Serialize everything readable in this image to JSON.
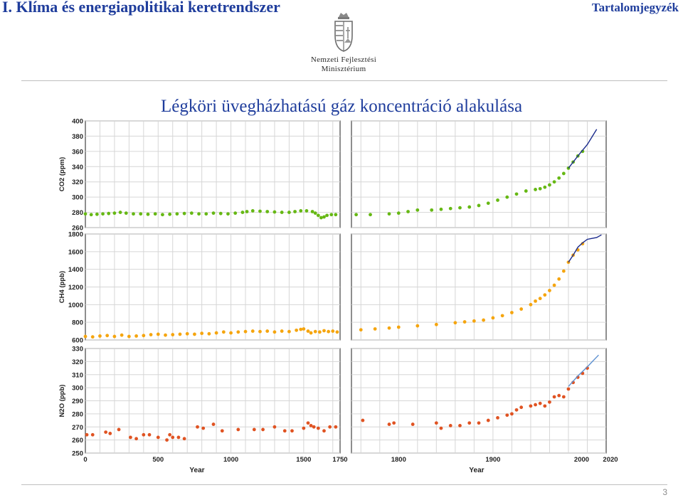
{
  "header": {
    "title": "I. Klíma és energiapolitikai keretrendszer",
    "toc_link": "Tartalomjegyzék"
  },
  "logo": {
    "line1": "Nemzeti Fejlesztési",
    "line2": "Minisztérium",
    "crest_icon": "hungarian-coat-of-arms-icon"
  },
  "slide": {
    "heading": "Légköri üvegházhatású gáz koncentráció alakulása",
    "page_number": "3"
  },
  "colors": {
    "title": "#1f3d9c",
    "co2": "#66b814",
    "ch4": "#f5a50f",
    "n2o": "#e05322",
    "modern_line": "#1a2a8c",
    "n2o_line": "#5b8fd0"
  },
  "chart_data": {
    "type": "scatter",
    "x_axis": {
      "label": "Year",
      "left_panel": {
        "range": [
          0,
          1750
        ],
        "ticks": [
          "0",
          "500",
          "1000",
          "1500",
          "1750"
        ]
      },
      "right_panel": {
        "range": [
          1750,
          2020
        ],
        "ticks": [
          "1800",
          "1900",
          "2000",
          "2020"
        ]
      }
    },
    "grid": true,
    "panels": [
      {
        "gas": "co2",
        "ylabel": "CO2 (ppm)",
        "ylim": [
          260,
          400
        ],
        "yticks": [
          "260",
          "280",
          "300",
          "320",
          "340",
          "360",
          "380",
          "400"
        ],
        "left_points": [
          [
            0,
            278
          ],
          [
            40,
            277
          ],
          [
            80,
            277.5
          ],
          [
            120,
            278
          ],
          [
            160,
            278.5
          ],
          [
            200,
            279
          ],
          [
            240,
            280
          ],
          [
            280,
            279
          ],
          [
            330,
            278
          ],
          [
            380,
            278
          ],
          [
            430,
            277.5
          ],
          [
            480,
            278
          ],
          [
            530,
            277
          ],
          [
            580,
            277.5
          ],
          [
            630,
            278
          ],
          [
            680,
            278.5
          ],
          [
            730,
            279
          ],
          [
            780,
            278
          ],
          [
            830,
            278
          ],
          [
            880,
            279
          ],
          [
            930,
            278.5
          ],
          [
            980,
            278
          ],
          [
            1030,
            279
          ],
          [
            1080,
            280
          ],
          [
            1110,
            281
          ],
          [
            1150,
            282
          ],
          [
            1200,
            281.5
          ],
          [
            1250,
            281
          ],
          [
            1300,
            280.5
          ],
          [
            1350,
            280
          ],
          [
            1400,
            280
          ],
          [
            1440,
            281
          ],
          [
            1480,
            282
          ],
          [
            1520,
            282
          ],
          [
            1560,
            281
          ],
          [
            1580,
            279
          ],
          [
            1600,
            276
          ],
          [
            1620,
            273
          ],
          [
            1640,
            274
          ],
          [
            1660,
            276
          ],
          [
            1690,
            277
          ],
          [
            1720,
            277
          ]
        ],
        "right_points": [
          [
            1755,
            277
          ],
          [
            1770,
            277
          ],
          [
            1790,
            278
          ],
          [
            1800,
            279
          ],
          [
            1810,
            281
          ],
          [
            1820,
            283
          ],
          [
            1835,
            283
          ],
          [
            1845,
            284
          ],
          [
            1855,
            285
          ],
          [
            1865,
            286
          ],
          [
            1875,
            287
          ],
          [
            1885,
            289
          ],
          [
            1895,
            292
          ],
          [
            1905,
            296
          ],
          [
            1915,
            300
          ],
          [
            1925,
            304
          ],
          [
            1935,
            308
          ],
          [
            1945,
            310
          ],
          [
            1950,
            311
          ],
          [
            1955,
            313
          ],
          [
            1960,
            316
          ],
          [
            1965,
            320
          ],
          [
            1970,
            325
          ],
          [
            1975,
            331
          ],
          [
            1980,
            338
          ],
          [
            1985,
            346
          ],
          [
            1990,
            354
          ],
          [
            1995,
            360
          ]
        ],
        "modern_line": [
          [
            1980,
            338
          ],
          [
            1990,
            354
          ],
          [
            2000,
            369
          ],
          [
            2010,
            389
          ]
        ]
      },
      {
        "gas": "ch4",
        "ylabel": "CH4 (ppb)",
        "ylim": [
          600,
          1800
        ],
        "yticks": [
          "600",
          "800",
          "1000",
          "1200",
          "1400",
          "1600",
          "1800"
        ],
        "left_points": [
          [
            0,
            640
          ],
          [
            50,
            635
          ],
          [
            100,
            645
          ],
          [
            150,
            650
          ],
          [
            200,
            640
          ],
          [
            250,
            655
          ],
          [
            300,
            640
          ],
          [
            350,
            645
          ],
          [
            400,
            650
          ],
          [
            450,
            660
          ],
          [
            500,
            665
          ],
          [
            550,
            655
          ],
          [
            600,
            660
          ],
          [
            650,
            665
          ],
          [
            700,
            670
          ],
          [
            750,
            665
          ],
          [
            800,
            675
          ],
          [
            850,
            670
          ],
          [
            900,
            680
          ],
          [
            950,
            690
          ],
          [
            1000,
            680
          ],
          [
            1050,
            690
          ],
          [
            1100,
            695
          ],
          [
            1150,
            700
          ],
          [
            1200,
            695
          ],
          [
            1250,
            700
          ],
          [
            1300,
            690
          ],
          [
            1350,
            700
          ],
          [
            1400,
            695
          ],
          [
            1450,
            710
          ],
          [
            1480,
            720
          ],
          [
            1500,
            725
          ],
          [
            1530,
            700
          ],
          [
            1550,
            680
          ],
          [
            1580,
            695
          ],
          [
            1610,
            690
          ],
          [
            1640,
            705
          ],
          [
            1670,
            695
          ],
          [
            1700,
            700
          ],
          [
            1730,
            690
          ]
        ],
        "right_points": [
          [
            1760,
            715
          ],
          [
            1775,
            725
          ],
          [
            1790,
            735
          ],
          [
            1800,
            745
          ],
          [
            1820,
            760
          ],
          [
            1840,
            775
          ],
          [
            1860,
            795
          ],
          [
            1870,
            805
          ],
          [
            1880,
            815
          ],
          [
            1890,
            825
          ],
          [
            1900,
            850
          ],
          [
            1910,
            875
          ],
          [
            1920,
            910
          ],
          [
            1930,
            950
          ],
          [
            1940,
            1000
          ],
          [
            1945,
            1040
          ],
          [
            1950,
            1070
          ],
          [
            1955,
            1110
          ],
          [
            1960,
            1160
          ],
          [
            1965,
            1220
          ],
          [
            1970,
            1290
          ],
          [
            1975,
            1380
          ],
          [
            1980,
            1480
          ],
          [
            1985,
            1560
          ],
          [
            1990,
            1620
          ],
          [
            1995,
            1690
          ]
        ],
        "modern_line": [
          [
            1980,
            1480
          ],
          [
            1985,
            1560
          ],
          [
            1990,
            1650
          ],
          [
            1995,
            1700
          ],
          [
            2000,
            1740
          ],
          [
            2005,
            1750
          ],
          [
            2010,
            1760
          ],
          [
            2015,
            1790
          ]
        ]
      },
      {
        "gas": "n2o",
        "ylabel": "N2O (ppb)",
        "ylim": [
          250,
          330
        ],
        "yticks": [
          "250",
          "260",
          "270",
          "280",
          "290",
          "300",
          "310",
          "320",
          "330"
        ],
        "left_points": [
          [
            10,
            264
          ],
          [
            50,
            264
          ],
          [
            140,
            266
          ],
          [
            170,
            265
          ],
          [
            230,
            268
          ],
          [
            310,
            262
          ],
          [
            350,
            261
          ],
          [
            400,
            264
          ],
          [
            440,
            264
          ],
          [
            500,
            262
          ],
          [
            560,
            260
          ],
          [
            580,
            264
          ],
          [
            600,
            262
          ],
          [
            640,
            262
          ],
          [
            680,
            261
          ],
          [
            770,
            270
          ],
          [
            810,
            269
          ],
          [
            880,
            272
          ],
          [
            940,
            267
          ],
          [
            1050,
            268
          ],
          [
            1160,
            268
          ],
          [
            1220,
            268
          ],
          [
            1300,
            270
          ],
          [
            1370,
            267
          ],
          [
            1420,
            267
          ],
          [
            1500,
            269
          ],
          [
            1530,
            273
          ],
          [
            1550,
            271
          ],
          [
            1570,
            270
          ],
          [
            1600,
            269
          ],
          [
            1640,
            267
          ],
          [
            1680,
            270
          ],
          [
            1720,
            270
          ]
        ],
        "right_points": [
          [
            1762,
            275
          ],
          [
            1790,
            272
          ],
          [
            1795,
            273
          ],
          [
            1815,
            272
          ],
          [
            1840,
            273
          ],
          [
            1845,
            269
          ],
          [
            1855,
            271
          ],
          [
            1865,
            271
          ],
          [
            1875,
            273
          ],
          [
            1885,
            273
          ],
          [
            1895,
            275
          ],
          [
            1905,
            277
          ],
          [
            1915,
            279
          ],
          [
            1920,
            280
          ],
          [
            1925,
            283
          ],
          [
            1930,
            285
          ],
          [
            1940,
            286
          ],
          [
            1945,
            287
          ],
          [
            1950,
            288
          ],
          [
            1955,
            286
          ],
          [
            1960,
            289
          ],
          [
            1965,
            293
          ],
          [
            1970,
            294
          ],
          [
            1975,
            293
          ],
          [
            1980,
            299
          ],
          [
            1985,
            304
          ],
          [
            1990,
            308
          ],
          [
            1995,
            311
          ],
          [
            2000,
            315
          ]
        ],
        "modern_line": [
          [
            1980,
            301
          ],
          [
            1990,
            309
          ],
          [
            2000,
            316
          ],
          [
            2008,
            322
          ],
          [
            2012,
            325
          ]
        ]
      }
    ]
  }
}
